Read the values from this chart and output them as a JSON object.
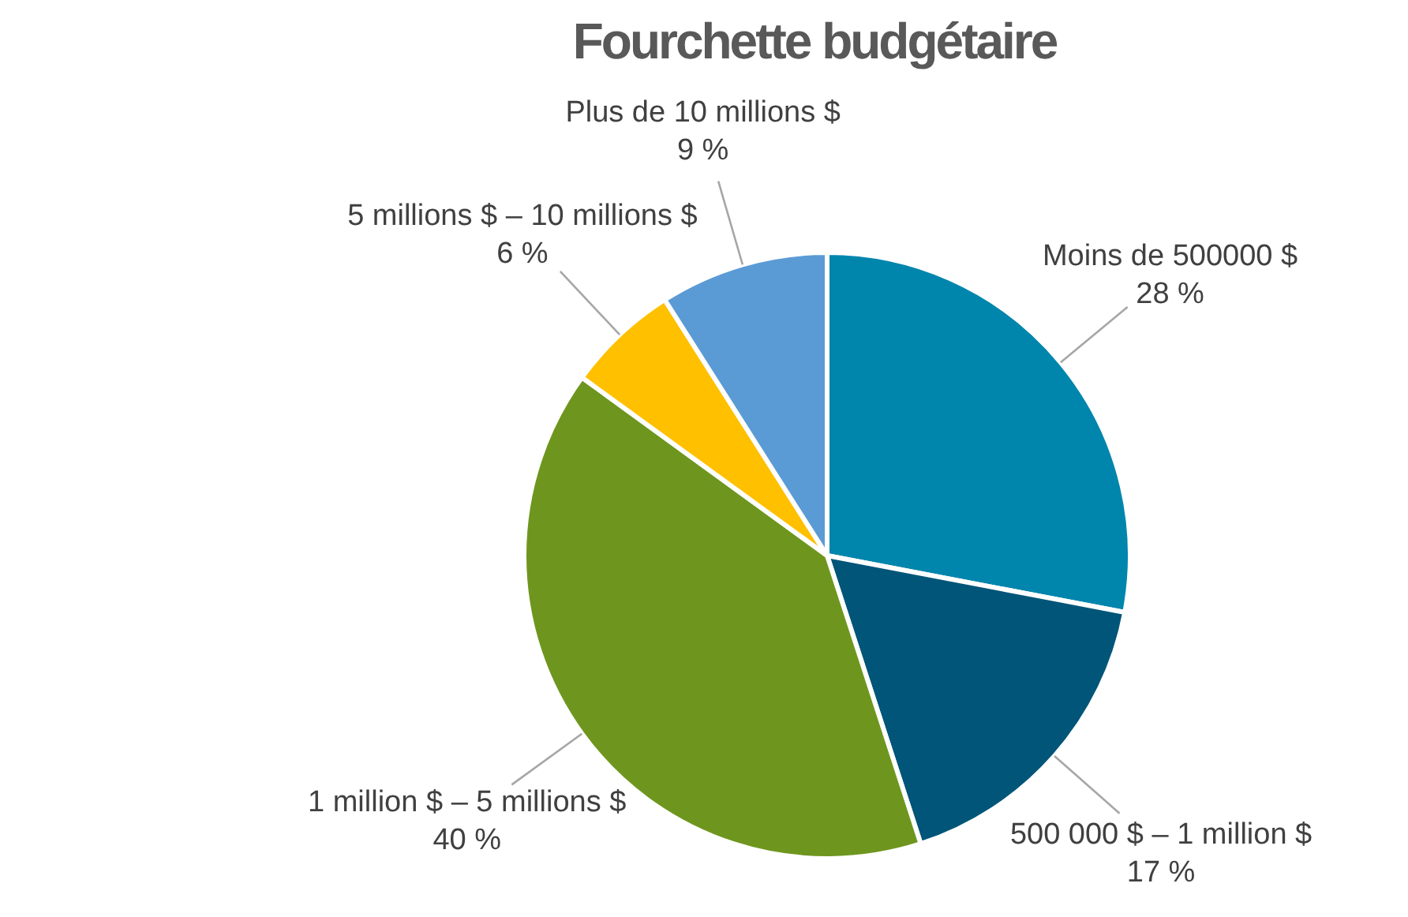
{
  "chart_data": {
    "type": "pie",
    "title": "Fourchette budgétaire",
    "categories": [
      "Moins de 500000 $",
      "500 000 $ – 1 million $",
      "1 million $ – 5 millions $",
      "5 millions $ – 10 millions $",
      "Plus de 10 millions $"
    ],
    "values": [
      28,
      17,
      40,
      6,
      9
    ],
    "colors": [
      "#0085ad",
      "#005578",
      "#6e961e",
      "#ffc000",
      "#5b9bd5"
    ],
    "value_labels": [
      "28 %",
      "17 %",
      "40 %",
      "6 %",
      "9 %"
    ],
    "legend": false
  }
}
